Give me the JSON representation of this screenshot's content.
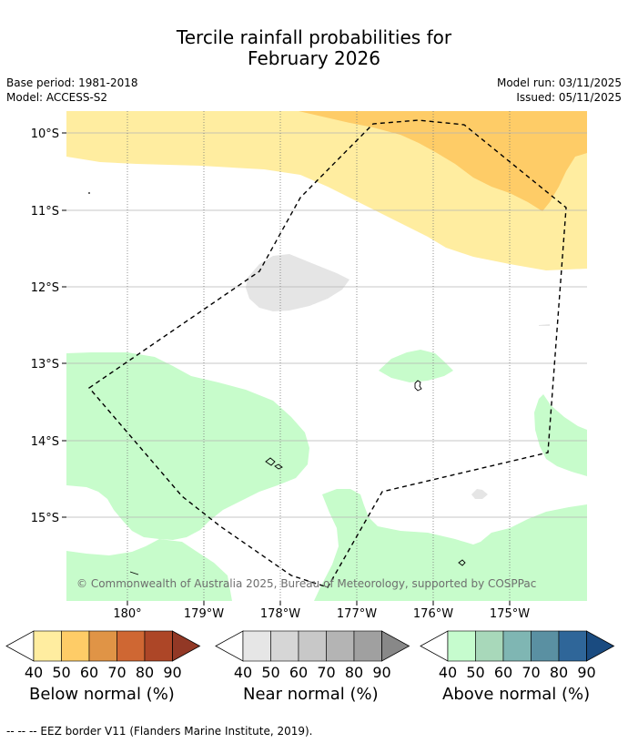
{
  "title": {
    "line1": "Tercile rainfall probabilities for",
    "line2": "February 2026"
  },
  "meta": {
    "base_period": "Base period: 1981-2018",
    "model": "Model: ACCESS-S2",
    "model_run": "Model run: 03/11/2025",
    "issued": "Issued: 05/11/2025"
  },
  "map": {
    "lat_labels": [
      "10°S",
      "11°S",
      "12°S",
      "13°S",
      "14°S",
      "15°S"
    ],
    "lon_labels": [
      "180°",
      "179°W",
      "178°W",
      "177°W",
      "176°W",
      "175°W"
    ],
    "copyright": "© Commonwealth of Australia 2025, Bureau of Meteorology, supported by COSPPac",
    "colors": {
      "below_40": "#ffeda0",
      "below_50": "#fecc67",
      "near_40": "#e5e5e5",
      "above_40": "#c7fccb",
      "eez_border": "#000000"
    }
  },
  "legend": {
    "tick_labels": [
      "40",
      "50",
      "60",
      "70",
      "80",
      "90"
    ],
    "below": {
      "label": "Below normal (%)",
      "colors": [
        "#ffeda0",
        "#fecc67",
        "#e09446",
        "#cf6733",
        "#ad4627",
        "#923825"
      ]
    },
    "near": {
      "label": "Near normal (%)",
      "colors": [
        "#e6e6e6",
        "#d6d6d6",
        "#c8c8c8",
        "#b4b4b4",
        "#a0a0a0",
        "#888888"
      ]
    },
    "above": {
      "label": "Above normal (%)",
      "colors": [
        "#c6fcce",
        "#a8d8ba",
        "#7fb6b3",
        "#5a90a2",
        "#2f6699",
        "#1a4b80"
      ]
    }
  },
  "footnote": "--  --  -- EEZ border V11 (Flanders Marine Institute, 2019)."
}
